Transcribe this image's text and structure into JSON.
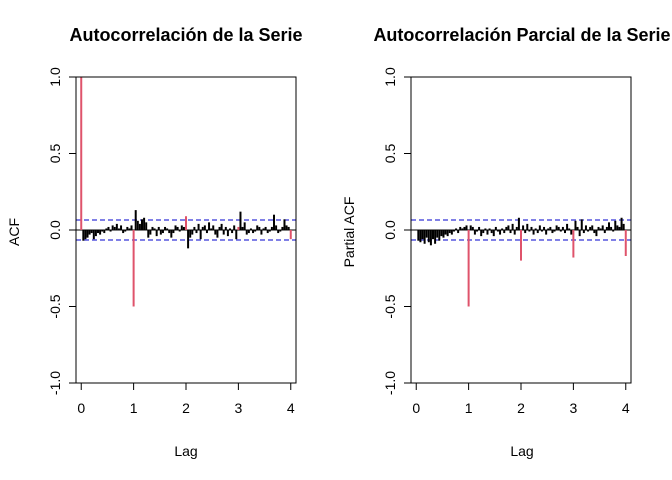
{
  "chart_data": [
    {
      "type": "bar",
      "title": "Autocorrelación de la Serie",
      "xlabel": "Lag",
      "ylabel": "ACF",
      "xlim": [
        -0.1,
        4.1
      ],
      "ylim": [
        -1.0,
        1.0
      ],
      "xticks": [
        "0",
        "1",
        "2",
        "3",
        "4"
      ],
      "yticks": [
        "-1.0",
        "-0.5",
        "0.0",
        "0.5",
        "1.0"
      ],
      "confidence_band": [
        -0.065,
        0.065
      ],
      "line_color": "#000000",
      "band_color": "#0000cc",
      "highlight_color": "#df536b",
      "highlight": [
        {
          "lag": 0,
          "value": 1.0
        },
        {
          "lag": 1,
          "value": -0.5
        },
        {
          "lag": 2,
          "value": 0.09
        },
        {
          "lag": 3,
          "value": 0.02
        },
        {
          "lag": 4,
          "value": -0.06
        }
      ],
      "lags": [
        0.04,
        0.08,
        0.12,
        0.16,
        0.2,
        0.24,
        0.28,
        0.32,
        0.36,
        0.4,
        0.44,
        0.48,
        0.52,
        0.56,
        0.6,
        0.64,
        0.68,
        0.72,
        0.76,
        0.8,
        0.84,
        0.88,
        0.92,
        0.96,
        1.04,
        1.08,
        1.12,
        1.16,
        1.2,
        1.24,
        1.28,
        1.32,
        1.36,
        1.4,
        1.44,
        1.48,
        1.52,
        1.56,
        1.6,
        1.64,
        1.68,
        1.72,
        1.76,
        1.8,
        1.84,
        1.88,
        1.92,
        1.96,
        2.04,
        2.08,
        2.12,
        2.16,
        2.2,
        2.24,
        2.28,
        2.32,
        2.36,
        2.4,
        2.44,
        2.48,
        2.52,
        2.56,
        2.6,
        2.64,
        2.68,
        2.72,
        2.76,
        2.8,
        2.84,
        2.88,
        2.92,
        2.96,
        3.04,
        3.08,
        3.12,
        3.16,
        3.2,
        3.24,
        3.28,
        3.32,
        3.36,
        3.4,
        3.44,
        3.48,
        3.52,
        3.56,
        3.6,
        3.64,
        3.68,
        3.72,
        3.76,
        3.8,
        3.84,
        3.88,
        3.92,
        3.96
      ],
      "values": [
        -0.07,
        -0.06,
        -0.05,
        -0.03,
        -0.02,
        -0.06,
        -0.04,
        -0.02,
        -0.03,
        -0.01,
        -0.02,
        0.01,
        0.02,
        -0.01,
        0.03,
        0.02,
        0.04,
        0.01,
        0.03,
        -0.02,
        -0.01,
        0.02,
        0.01,
        0.03,
        0.13,
        0.06,
        0.04,
        0.07,
        0.08,
        0.05,
        -0.05,
        -0.03,
        0.02,
        0.01,
        -0.04,
        0.02,
        -0.03,
        -0.02,
        0.02,
        0.01,
        -0.02,
        -0.05,
        -0.02,
        0.03,
        0.02,
        -0.01,
        0.03,
        0.02,
        -0.12,
        -0.05,
        -0.03,
        0.02,
        -0.02,
        0.04,
        -0.06,
        0.02,
        0.03,
        -0.02,
        0.05,
        0.01,
        0.03,
        -0.03,
        -0.05,
        0.02,
        0.04,
        -0.03,
        0.02,
        -0.04,
        0.01,
        -0.02,
        0.03,
        -0.06,
        0.12,
        0.02,
        0.05,
        -0.03,
        -0.02,
        0.01,
        -0.02,
        -0.01,
        0.03,
        0.02,
        -0.03,
        0.01,
        0.02,
        -0.02,
        -0.01,
        0.02,
        0.1,
        0.03,
        -0.02,
        -0.01,
        0.02,
        0.07,
        0.03,
        0.02
      ]
    },
    {
      "type": "bar",
      "title": "Autocorrelación Parcial de la Serie",
      "xlabel": "Lag",
      "ylabel": "Partial ACF",
      "xlim": [
        -0.1,
        4.1
      ],
      "ylim": [
        -1.0,
        1.0
      ],
      "xticks": [
        "0",
        "1",
        "2",
        "3",
        "4"
      ],
      "yticks": [
        "-1.0",
        "-0.5",
        "0.0",
        "0.5",
        "1.0"
      ],
      "confidence_band": [
        -0.065,
        0.065
      ],
      "line_color": "#000000",
      "band_color": "#0000cc",
      "highlight_color": "#df536b",
      "highlight": [
        {
          "lag": 1,
          "value": -0.5
        },
        {
          "lag": 2,
          "value": -0.2
        },
        {
          "lag": 3,
          "value": -0.18
        },
        {
          "lag": 4,
          "value": -0.17
        }
      ],
      "lags": [
        0.04,
        0.08,
        0.12,
        0.16,
        0.2,
        0.24,
        0.28,
        0.32,
        0.36,
        0.4,
        0.44,
        0.48,
        0.52,
        0.56,
        0.6,
        0.64,
        0.68,
        0.72,
        0.76,
        0.8,
        0.84,
        0.88,
        0.92,
        0.96,
        1.04,
        1.08,
        1.12,
        1.16,
        1.2,
        1.24,
        1.28,
        1.32,
        1.36,
        1.4,
        1.44,
        1.48,
        1.52,
        1.56,
        1.6,
        1.64,
        1.68,
        1.72,
        1.76,
        1.8,
        1.84,
        1.88,
        1.92,
        1.96,
        2.04,
        2.08,
        2.12,
        2.16,
        2.2,
        2.24,
        2.28,
        2.32,
        2.36,
        2.4,
        2.44,
        2.48,
        2.52,
        2.56,
        2.6,
        2.64,
        2.68,
        2.72,
        2.76,
        2.8,
        2.84,
        2.88,
        2.92,
        2.96,
        3.04,
        3.08,
        3.12,
        3.16,
        3.2,
        3.24,
        3.28,
        3.32,
        3.36,
        3.4,
        3.44,
        3.48,
        3.52,
        3.56,
        3.6,
        3.64,
        3.68,
        3.72,
        3.76,
        3.8,
        3.84,
        3.88,
        3.92,
        3.96
      ],
      "values": [
        -0.07,
        -0.08,
        -0.06,
        -0.09,
        -0.05,
        -0.08,
        -0.1,
        -0.06,
        -0.09,
        -0.05,
        -0.07,
        -0.04,
        -0.05,
        -0.03,
        -0.04,
        -0.02,
        -0.03,
        -0.01,
        0.01,
        -0.02,
        0.02,
        0.01,
        0.02,
        0.03,
        0.03,
        0.02,
        -0.03,
        -0.01,
        0.02,
        -0.04,
        -0.02,
        0.01,
        -0.03,
        0.01,
        -0.02,
        -0.04,
        0.02,
        -0.01,
        -0.03,
        0.01,
        -0.02,
        0.02,
        0.03,
        -0.02,
        0.04,
        -0.03,
        0.02,
        0.08,
        0.03,
        -0.02,
        0.04,
        -0.01,
        0.02,
        -0.03,
        0.01,
        -0.02,
        0.03,
        -0.01,
        0.02,
        -0.03,
        0.01,
        0.02,
        -0.02,
        -0.01,
        0.03,
        0.02,
        -0.01,
        0.02,
        -0.02,
        0.04,
        0.01,
        -0.03,
        0.06,
        0.02,
        -0.04,
        0.07,
        -0.02,
        0.03,
        -0.01,
        0.02,
        0.03,
        -0.02,
        -0.04,
        0.02,
        0.01,
        0.03,
        -0.02,
        0.02,
        0.05,
        0.02,
        -0.01,
        0.06,
        0.03,
        0.02,
        0.08,
        0.04
      ]
    }
  ]
}
